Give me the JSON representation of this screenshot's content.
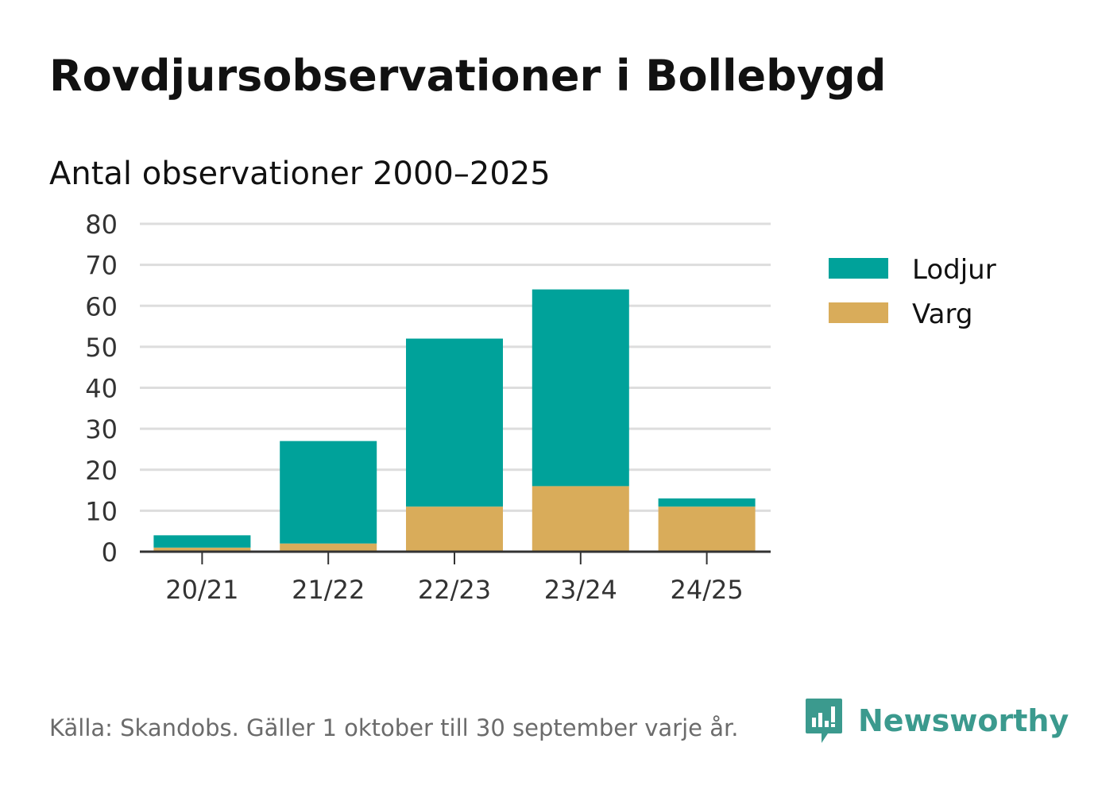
{
  "title": "Rovdjursobservationer i Bollebygd",
  "subtitle": "Antal observationer 2000–2025",
  "source": "Källa: Skandobs. Gäller 1 oktober till 30 september varje år.",
  "brand": {
    "name": "Newsworthy",
    "icon": "newsworthy-logo-icon",
    "color": "#3b9a8e"
  },
  "chart_data": {
    "type": "bar",
    "stacked": true,
    "title": "Rovdjursobservationer i Bollebygd",
    "subtitle": "Antal observationer 2000–2025",
    "xlabel": "",
    "ylabel": "",
    "ylim": [
      0,
      80
    ],
    "yticks": [
      0,
      10,
      20,
      30,
      40,
      50,
      60,
      70,
      80
    ],
    "grid": true,
    "legend_position": "right",
    "categories": [
      "20/21",
      "21/22",
      "22/23",
      "23/24",
      "24/25"
    ],
    "series": [
      {
        "name": "Varg",
        "color": "#d9ac5a",
        "values": [
          1,
          2,
          11,
          16,
          11
        ]
      },
      {
        "name": "Lodjur",
        "color": "#00a29a",
        "values": [
          3,
          25,
          41,
          48,
          2
        ]
      }
    ],
    "legend": [
      {
        "name": "Lodjur",
        "color": "#00a29a"
      },
      {
        "name": "Varg",
        "color": "#d9ac5a"
      }
    ]
  }
}
